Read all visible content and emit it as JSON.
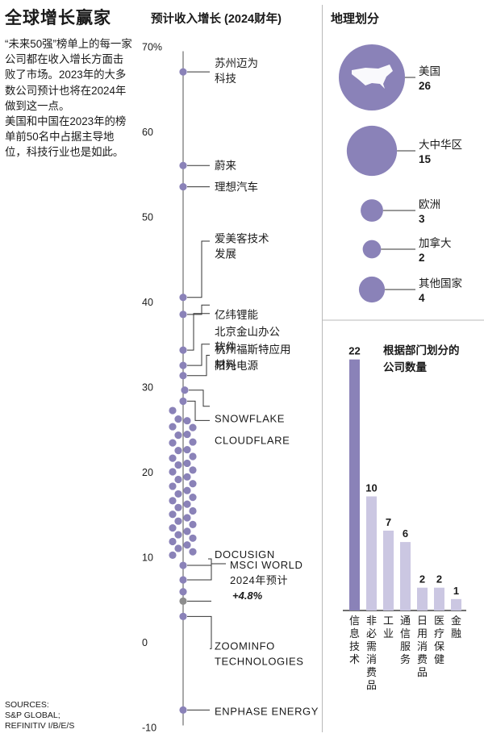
{
  "header": {
    "title": "全球增长赢家",
    "intro": [
      "“未来50强”榜单上的每一家公司都在收入增长方面击败了市场。2023年的大多数公司预计也将在2024年做到这一点。",
      "美国和中国在2023年的榜单前50名中占据主导地位，科技行业也是如此。"
    ],
    "sources": [
      "SOURCES:",
      "S&P GLOBAL;",
      "REFINITIV I/B/E/S"
    ]
  },
  "colors": {
    "dot": "#8a82b8",
    "highlight": "#8d8d8d",
    "bar_main": "#8a82b8",
    "bar_light": "#cbc7e2",
    "axis": "#6f6f6f",
    "leader": "#333333"
  },
  "chart_data": [
    {
      "type": "scatter",
      "title": "预计收入增长 (2024财年)",
      "ylim": [
        -10,
        70
      ],
      "yticks": [
        "70%",
        "60",
        "50",
        "40",
        "30",
        "20",
        "10",
        "0",
        "-10"
      ],
      "tick_values": [
        70,
        60,
        50,
        40,
        30,
        20,
        10,
        0,
        -10
      ],
      "labeled_points": [
        {
          "label": "苏州迈为\n科技",
          "value": 67
        },
        {
          "label": "蔚来",
          "value": 56
        },
        {
          "label": "理想汽车",
          "value": 53.5
        },
        {
          "label": "爱美客技术\n发展",
          "value": 40.5
        },
        {
          "label": "亿纬锂能",
          "value": 38.5
        },
        {
          "label": "北京金山办公\n软件",
          "value": 34.3
        },
        {
          "label": "杭州福斯特应用\n材料",
          "value": 32.5
        },
        {
          "label": "阳光电源",
          "value": 31.3
        },
        {
          "label": "SNOWFLAKE",
          "value": 29.6
        },
        {
          "label": "CLOUDFLARE",
          "value": 28.3
        },
        {
          "label": "DOCUSIGN",
          "value": 9
        },
        {
          "label": "ZOOMINFO\nTECHNOLOGIES",
          "value": 3
        },
        {
          "label": "ENPHASE ENERGY",
          "value": -8
        }
      ],
      "benchmark": {
        "label": "MSCI WORLD\n2024年预计",
        "value_label": "+4.8%",
        "value": 4.8
      },
      "cluster_values": [
        27.2,
        26.2,
        25.3,
        24.3,
        23.4,
        22.5,
        21.6,
        20.8,
        20,
        19.1,
        18.3,
        17.4,
        16.6,
        15.8,
        15,
        14.2,
        13.4,
        12.6,
        11.8,
        11,
        10.2,
        26,
        25.2,
        24.4,
        23.5,
        22.6,
        21.8,
        21,
        20.2,
        19.4,
        18.6,
        17.8,
        17,
        16.2,
        15.4,
        14.6,
        13.8,
        13,
        12.2,
        11.4,
        10.6,
        7.3,
        5.9
      ]
    },
    {
      "type": "bubble",
      "title": "地理划分",
      "categories": [
        "美国",
        "大中华区",
        "欧洲",
        "加拿大",
        "其他国家"
      ],
      "values": [
        26,
        15,
        3,
        2,
        4
      ]
    },
    {
      "type": "bar",
      "title": "根据部门划分的\n公司数量",
      "categories": [
        "信息技术",
        "非必需消费品",
        "工业",
        "通信服务",
        "日用消费品",
        "医疗保健",
        "金融"
      ],
      "values": [
        22,
        10,
        7,
        6,
        2,
        2,
        1
      ]
    }
  ]
}
